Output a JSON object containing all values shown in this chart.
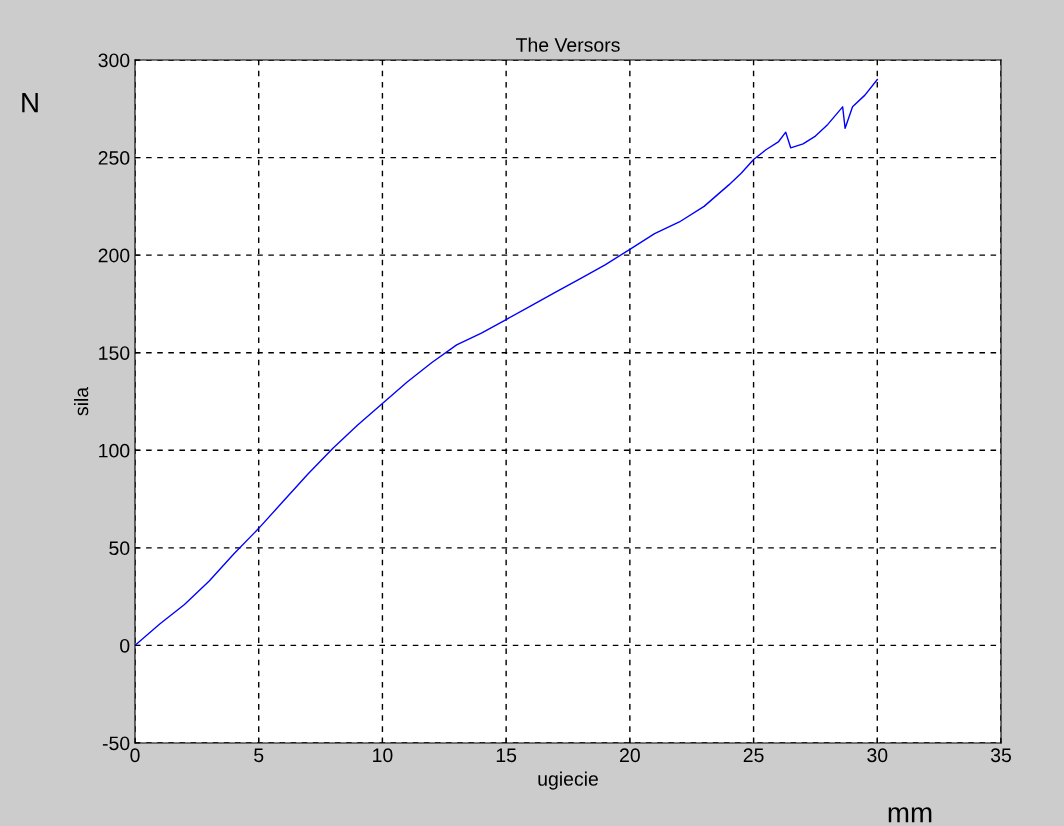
{
  "chart_data": {
    "type": "line",
    "title": "The Versors",
    "xlabel": "ugiecie",
    "ylabel": "sila",
    "annotations": [
      "N",
      "mm"
    ],
    "xlim": [
      0,
      35
    ],
    "ylim": [
      -50,
      300
    ],
    "xticks": [
      0,
      5,
      10,
      15,
      20,
      25,
      30,
      35
    ],
    "yticks": [
      -50,
      0,
      50,
      100,
      150,
      200,
      250,
      300
    ],
    "grid": true,
    "line_style": "solid",
    "marker": "none",
    "series": [
      {
        "color": "#0000ff",
        "x": [
          0,
          1,
          2,
          3,
          4,
          5,
          6,
          7,
          8,
          9,
          10,
          11,
          12,
          13,
          14,
          15,
          16,
          17,
          18,
          19,
          20,
          21,
          22,
          23,
          24,
          24.5,
          25,
          25.5,
          26,
          26.3,
          26.5,
          27,
          27.5,
          28,
          28.6,
          28.7,
          29,
          29.5,
          30
        ],
        "values": [
          0,
          11,
          21,
          33,
          47,
          60,
          74,
          88,
          101,
          113,
          124,
          135,
          145,
          154,
          160,
          167,
          174,
          181,
          188,
          195,
          203,
          211,
          217,
          225,
          236,
          242,
          249,
          254,
          258,
          263,
          255,
          257,
          261,
          267,
          276,
          265,
          276,
          282,
          290
        ]
      }
    ]
  }
}
